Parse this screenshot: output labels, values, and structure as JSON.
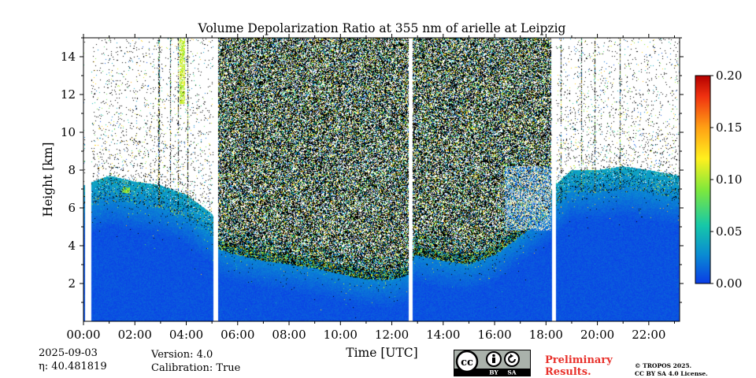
{
  "chart_data": {
    "type": "heatmap",
    "title": "Volume Depolarization Ratio at 355 nm of arielle at Leipzig",
    "xlabel": "Time [UTC]",
    "ylabel": "Height [km]",
    "xlim_hours": [
      0,
      23.2
    ],
    "ylim_km": [
      0,
      15
    ],
    "x_ticks": [
      {
        "hour": 0,
        "label": "00:00"
      },
      {
        "hour": 2,
        "label": "02:00"
      },
      {
        "hour": 4,
        "label": "04:00"
      },
      {
        "hour": 6,
        "label": "06:00"
      },
      {
        "hour": 8,
        "label": "08:00"
      },
      {
        "hour": 10,
        "label": "10:00"
      },
      {
        "hour": 12,
        "label": "12:00"
      },
      {
        "hour": 14,
        "label": "14:00"
      },
      {
        "hour": 16,
        "label": "16:00"
      },
      {
        "hour": 18,
        "label": "18:00"
      },
      {
        "hour": 20,
        "label": "20:00"
      },
      {
        "hour": 22,
        "label": "22:00"
      }
    ],
    "y_ticks": [
      {
        "km": 2,
        "label": "2"
      },
      {
        "km": 4,
        "label": "4"
      },
      {
        "km": 6,
        "label": "6"
      },
      {
        "km": 8,
        "label": "8"
      },
      {
        "km": 10,
        "label": "10"
      },
      {
        "km": 12,
        "label": "12"
      },
      {
        "km": 14,
        "label": "14"
      }
    ],
    "colorbar": {
      "min": 0.0,
      "max": 0.2,
      "ticks": [
        {
          "value": 0.0,
          "label": "0.00"
        },
        {
          "value": 0.05,
          "label": "0.05"
        },
        {
          "value": 0.1,
          "label": "0.10"
        },
        {
          "value": 0.15,
          "label": "0.15"
        },
        {
          "value": 0.2,
          "label": "0.20"
        }
      ],
      "colors": [
        "#0a3ce6",
        "#0a8cd2",
        "#16c8a8",
        "#7ee83c",
        "#fff01e",
        "#ffa014",
        "#f03210",
        "#b40000"
      ]
    },
    "data_gaps_hours": [
      [
        0.05,
        0.3
      ],
      [
        5.05,
        5.25
      ],
      [
        12.65,
        12.82
      ],
      [
        18.22,
        18.4
      ]
    ],
    "noise_onset_km": [
      [
        0.0,
        6.0
      ],
      [
        1.0,
        6.5
      ],
      [
        2.0,
        6.2
      ],
      [
        3.0,
        6.0
      ],
      [
        4.0,
        5.5
      ],
      [
        5.0,
        4.5
      ],
      [
        5.3,
        3.8
      ],
      [
        6.0,
        3.5
      ],
      [
        7.0,
        3.2
      ],
      [
        8.0,
        3.0
      ],
      [
        9.0,
        2.8
      ],
      [
        10.0,
        2.5
      ],
      [
        11.0,
        2.2
      ],
      [
        12.0,
        2.2
      ],
      [
        12.6,
        2.4
      ],
      [
        12.9,
        3.5
      ],
      [
        14.0,
        3.2
      ],
      [
        15.0,
        3.0
      ],
      [
        16.0,
        3.5
      ],
      [
        17.0,
        4.5
      ],
      [
        18.0,
        5.5
      ],
      [
        18.5,
        6.2
      ],
      [
        19.0,
        6.8
      ],
      [
        20.0,
        6.8
      ],
      [
        21.0,
        7.0
      ],
      [
        22.0,
        6.8
      ],
      [
        23.2,
        6.5
      ]
    ],
    "features": [
      {
        "kind": "depolarizing_layer",
        "time_range_hours": [
          16.4,
          18.2
        ],
        "height_range_km": [
          4.8,
          8.2
        ],
        "value_approx": 0.02
      },
      {
        "kind": "depolarizing_layer",
        "time_range_hours": [
          3.75,
          3.95
        ],
        "height_range_km": [
          11.5,
          15
        ],
        "value_approx": 0.1
      },
      {
        "kind": "small_feature",
        "time_range_hours": [
          1.5,
          1.8
        ],
        "height_range_km": [
          6.8,
          7.1
        ],
        "value_approx": 0.09
      }
    ]
  },
  "meta": {
    "date": "2025-09-03",
    "eta_label": "η: 40.481819",
    "version_label": "Version: 4.0",
    "calibration_label": "Calibration: True"
  },
  "license": {
    "badge_by": "BY",
    "badge_sa": "SA",
    "preliminary_line1": "Preliminary",
    "preliminary_line2": "Results.",
    "copyright_line1": "© TROPOS 2025.",
    "copyright_line2": "CC BY SA 4.0 License."
  }
}
